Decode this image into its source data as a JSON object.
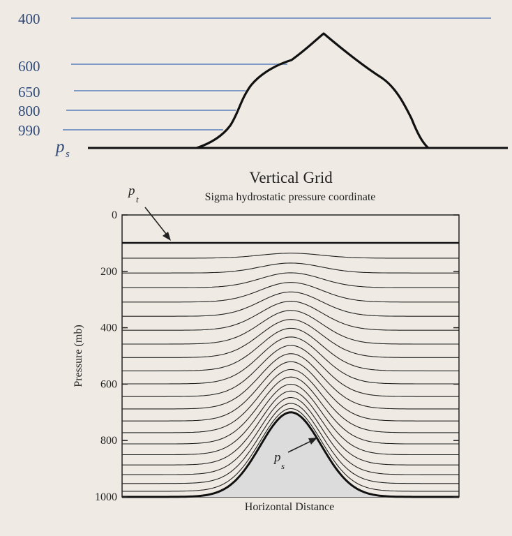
{
  "top_diagram": {
    "level_labels": [
      "400",
      "600",
      "650",
      "800",
      "990"
    ],
    "surface_label_main": "p",
    "surface_label_sub": "s"
  },
  "sigma_chart": {
    "title": "Vertical Grid",
    "subtitle": "Sigma hydrostatic pressure coordinate",
    "ylabel": "Pressure (mb)",
    "xlabel": "Horizontal Distance",
    "y_ticks": [
      "0",
      "200",
      "400",
      "600",
      "800",
      "1000"
    ],
    "top_label_main": "p",
    "top_label_sub": "t",
    "surface_label_main": "p",
    "surface_label_sub": "s"
  },
  "chart_data": {
    "type": "line",
    "title": "Vertical Grid",
    "subtitle": "Sigma hydrostatic pressure coordinate",
    "xlabel": "Horizontal Distance",
    "ylabel": "Pressure (mb)",
    "ylim": [
      1000,
      0
    ],
    "y_ticks": [
      0,
      200,
      400,
      600,
      800,
      1000
    ],
    "top_pressure_pt": 100,
    "surface_pressure_far": 1000,
    "surface_pressure_peak": 700,
    "level_count": 21
  },
  "colors": {
    "background": "#efebe4",
    "level_line": "#6f8fc2",
    "text_blue": "#2f4a78",
    "mountain_fill": "#dcdcdc"
  }
}
